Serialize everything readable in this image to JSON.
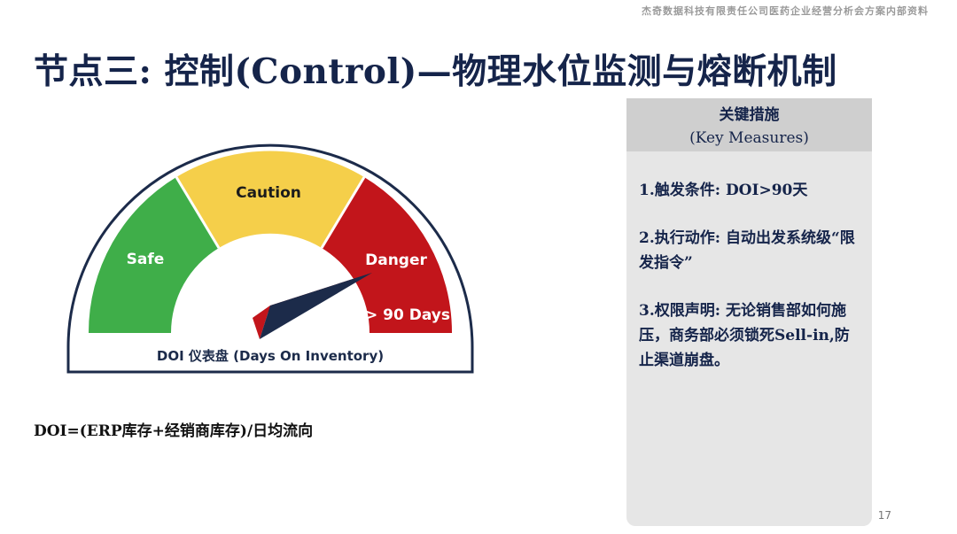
{
  "header": {
    "watermark": "杰奇数据科技有限责任公司医药企业经营分析会方案内部资料",
    "title": "节点三: 控制(Control)—物理水位监测与熔断机制"
  },
  "gauge": {
    "zones": [
      {
        "label": "Safe",
        "color": "#3fae49"
      },
      {
        "label": "Caution",
        "color": "#f5cf4a"
      },
      {
        "label": "Danger",
        "color": "#c2151b"
      }
    ],
    "threshold_label": "> 90 Days",
    "caption": "DOI 仪表盘 (Days On Inventory)"
  },
  "formula": "DOI=(ERP库存+经销商库存)/日均流向",
  "panel": {
    "title": "关键措施",
    "subtitle": "(Key Measures)",
    "measures": [
      "1.触发条件: DOI>90天",
      "2.执行动作: 自动出发系统级“限发指令”",
      "3.权限声明: 无论销售部如何施压，商务部必须锁死Sell-in,防止渠道崩盘。"
    ]
  },
  "footer": {
    "page_number": "17"
  }
}
